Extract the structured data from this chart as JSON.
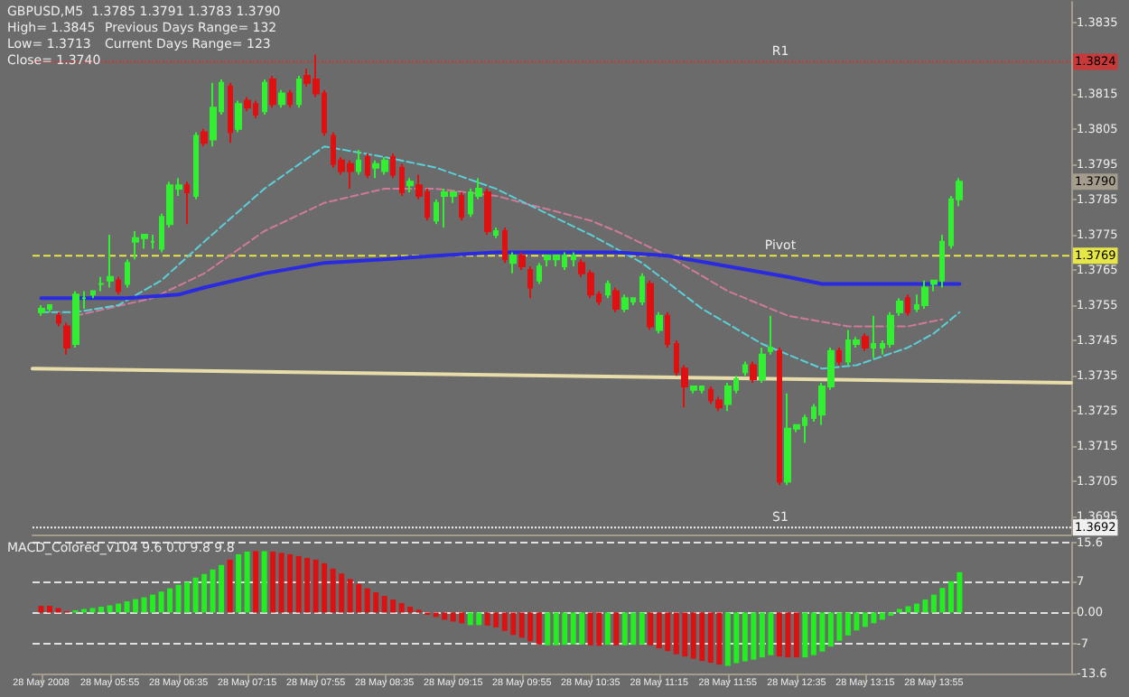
{
  "chart_data": [
    {
      "type": "candlestick",
      "title": "GBPUSD,M5  1.3785 1.3791 1.3783 1.3790",
      "annotations": [
        "High= 1.3845",
        "Previous Days Range= 132",
        "Low= 1.3713",
        "Current Days Range= 123",
        "Close= 1.3740",
        {
          "text": "1.3824",
          "y": 1.3824
        },
        {
          "text": "1.3790",
          "y": 1.379
        },
        {
          "text": "1.3769",
          "y": 1.3769
        },
        {
          "text": "1.3692",
          "y": 1.3692
        }
      ],
      "x": [
        "2008-05-28T05:15",
        "2008-05-28T05:20",
        "2008-05-28T05:25",
        "2008-05-28T05:30",
        "2008-05-28T05:35",
        "2008-05-28T05:40",
        "2008-05-28T05:45",
        "2008-05-28T05:50",
        "2008-05-28T05:55",
        "2008-05-28T06:00",
        "2008-05-28T06:05",
        "2008-05-28T06:10",
        "2008-05-28T06:15",
        "2008-05-28T06:20",
        "2008-05-28T06:25",
        "2008-05-28T06:30",
        "2008-05-28T06:35",
        "2008-05-28T06:40",
        "2008-05-28T06:45",
        "2008-05-28T06:50",
        "2008-05-28T06:55",
        "2008-05-28T07:00",
        "2008-05-28T07:05",
        "2008-05-28T07:10",
        "2008-05-28T07:15",
        "2008-05-28T07:20",
        "2008-05-28T07:25",
        "2008-05-28T07:30",
        "2008-05-28T07:35",
        "2008-05-28T07:40",
        "2008-05-28T07:45",
        "2008-05-28T07:50",
        "2008-05-28T07:55",
        "2008-05-28T08:00",
        "2008-05-28T08:05",
        "2008-05-28T08:10",
        "2008-05-28T08:15",
        "2008-05-28T08:20",
        "2008-05-28T08:25",
        "2008-05-28T08:30",
        "2008-05-28T08:35",
        "2008-05-28T08:40",
        "2008-05-28T08:45",
        "2008-05-28T08:50",
        "2008-05-28T08:55",
        "2008-05-28T09:00",
        "2008-05-28T09:05",
        "2008-05-28T09:10",
        "2008-05-28T09:15",
        "2008-05-28T09:20",
        "2008-05-28T09:25",
        "2008-05-28T09:30",
        "2008-05-28T09:35",
        "2008-05-28T09:40",
        "2008-05-28T09:45",
        "2008-05-28T09:50",
        "2008-05-28T09:55",
        "2008-05-28T10:00",
        "2008-05-28T10:05",
        "2008-05-28T10:10",
        "2008-05-28T10:15",
        "2008-05-28T10:20",
        "2008-05-28T10:25",
        "2008-05-28T10:30",
        "2008-05-28T10:35",
        "2008-05-28T10:40",
        "2008-05-28T10:45",
        "2008-05-28T10:50",
        "2008-05-28T10:55",
        "2008-05-28T11:00",
        "2008-05-28T11:05",
        "2008-05-28T11:10",
        "2008-05-28T11:15",
        "2008-05-28T11:20",
        "2008-05-28T11:25",
        "2008-05-28T11:30",
        "2008-05-28T11:35",
        "2008-05-28T11:40",
        "2008-05-28T11:45",
        "2008-05-28T11:50",
        "2008-05-28T11:55",
        "2008-05-28T12:00",
        "2008-05-28T12:05",
        "2008-05-28T12:10",
        "2008-05-28T12:15",
        "2008-05-28T12:20",
        "2008-05-28T12:25",
        "2008-05-28T12:30",
        "2008-05-28T12:35",
        "2008-05-28T12:40",
        "2008-05-28T12:45",
        "2008-05-28T12:50",
        "2008-05-28T12:55",
        "2008-05-28T13:00",
        "2008-05-28T13:05",
        "2008-05-28T13:10",
        "2008-05-28T13:15",
        "2008-05-28T13:20",
        "2008-05-28T13:25",
        "2008-05-28T13:30",
        "2008-05-28T13:35",
        "2008-05-28T13:40",
        "2008-05-28T13:45",
        "2008-05-28T13:50",
        "2008-05-28T13:55",
        "2008-05-28T14:00",
        "2008-05-28T14:05",
        "2008-05-28T14:10"
      ],
      "xlim": [
        "2008-05-28T05:10",
        "2008-05-28T15:15"
      ],
      "ylim": [
        1.369,
        1.3841
      ],
      "yticks": [
        1.3835,
        1.3815,
        1.3805,
        1.3795,
        1.3785,
        1.3775,
        1.3765,
        1.3755,
        1.3745,
        1.3735,
        1.3725,
        1.3715,
        1.3705,
        1.3695
      ],
      "tick_labels": "y",
      "marker": "none",
      "ohlc": [
        [
          1.3753,
          1.3755,
          1.3752,
          1.3754
        ],
        [
          1.3754,
          1.3755,
          1.3753,
          1.3755
        ],
        [
          1.3752,
          1.3753,
          1.3749,
          1.375
        ],
        [
          1.3749,
          1.375,
          1.3741,
          1.3743
        ],
        [
          1.3744,
          1.3759,
          1.3743,
          1.3758
        ],
        [
          1.3757,
          1.3759,
          1.3754,
          1.3757
        ],
        [
          1.3758,
          1.3759,
          1.3757,
          1.3759
        ],
        [
          1.3761,
          1.3763,
          1.3759,
          1.3761
        ],
        [
          1.3762,
          1.3775,
          1.376,
          1.3763
        ],
        [
          1.3762,
          1.3763,
          1.3758,
          1.3759
        ],
        [
          1.3761,
          1.3768,
          1.376,
          1.3767
        ],
        [
          1.3773,
          1.3776,
          1.3768,
          1.3774
        ],
        [
          1.3774,
          1.3775,
          1.3771,
          1.3775
        ],
        [
          1.3773,
          1.3775,
          1.3771,
          1.3773
        ],
        [
          1.3771,
          1.3781,
          1.377,
          1.378
        ],
        [
          1.3778,
          1.379,
          1.3777,
          1.3789
        ],
        [
          1.3788,
          1.3791,
          1.3786,
          1.3789
        ],
        [
          1.3789,
          1.379,
          1.3778,
          1.3787
        ],
        [
          1.3786,
          1.3804,
          1.3785,
          1.3803
        ],
        [
          1.3804,
          1.3805,
          1.38,
          1.3801
        ],
        [
          1.3802,
          1.3818,
          1.38,
          1.3811
        ],
        [
          1.381,
          1.3819,
          1.3809,
          1.3818
        ],
        [
          1.3817,
          1.3818,
          1.3801,
          1.3804
        ],
        [
          1.3805,
          1.3813,
          1.3804,
          1.3812
        ],
        [
          1.3813,
          1.3814,
          1.381,
          1.3811
        ],
        [
          1.3812,
          1.3813,
          1.3808,
          1.3809
        ],
        [
          1.381,
          1.3819,
          1.3809,
          1.3818
        ],
        [
          1.3819,
          1.382,
          1.3811,
          1.3812
        ],
        [
          1.3812,
          1.3816,
          1.3811,
          1.3815
        ],
        [
          1.3815,
          1.3816,
          1.3811,
          1.3812
        ],
        [
          1.3812,
          1.382,
          1.3811,
          1.3819
        ],
        [
          1.382,
          1.3822,
          1.3817,
          1.3818
        ],
        [
          1.3819,
          1.3826,
          1.3814,
          1.3815
        ],
        [
          1.3815,
          1.3816,
          1.3803,
          1.3804
        ],
        [
          1.3803,
          1.3804,
          1.3794,
          1.3795
        ],
        [
          1.3796,
          1.3797,
          1.3792,
          1.3793
        ],
        [
          1.3795,
          1.3796,
          1.3788,
          1.3793
        ],
        [
          1.3793,
          1.3799,
          1.3792,
          1.3796
        ],
        [
          1.3797,
          1.3798,
          1.3791,
          1.3792
        ],
        [
          1.3794,
          1.3796,
          1.3791,
          1.3795
        ],
        [
          1.3793,
          1.3797,
          1.3792,
          1.3796
        ],
        [
          1.3797,
          1.3798,
          1.3791,
          1.3792
        ],
        [
          1.3794,
          1.3795,
          1.3786,
          1.3787
        ],
        [
          1.3789,
          1.3791,
          1.3787,
          1.379
        ],
        [
          1.3789,
          1.3792,
          1.3785,
          1.3786
        ],
        [
          1.3787,
          1.3788,
          1.3779,
          1.378
        ],
        [
          1.3779,
          1.3785,
          1.3778,
          1.3784
        ],
        [
          1.3786,
          1.3788,
          1.3777,
          1.3787
        ],
        [
          1.3786,
          1.3787,
          1.3784,
          1.3787
        ],
        [
          1.3786,
          1.3787,
          1.3779,
          1.378
        ],
        [
          1.3781,
          1.3788,
          1.378,
          1.3787
        ],
        [
          1.3786,
          1.3791,
          1.3785,
          1.3788
        ],
        [
          1.3787,
          1.3788,
          1.3775,
          1.3776
        ],
        [
          1.3775,
          1.3777,
          1.3774,
          1.3776
        ],
        [
          1.3776,
          1.3777,
          1.3767,
          1.3768
        ],
        [
          1.3767,
          1.377,
          1.3764,
          1.3769
        ],
        [
          1.3769,
          1.377,
          1.3765,
          1.3766
        ],
        [
          1.3765,
          1.3766,
          1.3757,
          1.376
        ],
        [
          1.3762,
          1.3767,
          1.3761,
          1.3766
        ],
        [
          1.3768,
          1.3769,
          1.3766,
          1.3769
        ],
        [
          1.3768,
          1.3769,
          1.3766,
          1.3769
        ],
        [
          1.3766,
          1.377,
          1.3765,
          1.3769
        ],
        [
          1.3768,
          1.377,
          1.3766,
          1.3769
        ],
        [
          1.3767,
          1.3768,
          1.3763,
          1.3764
        ],
        [
          1.3764,
          1.3765,
          1.3757,
          1.3758
        ],
        [
          1.3758,
          1.3759,
          1.3755,
          1.3756
        ],
        [
          1.3758,
          1.3762,
          1.3757,
          1.3761
        ],
        [
          1.3759,
          1.376,
          1.3753,
          1.3754
        ],
        [
          1.3754,
          1.3758,
          1.3753,
          1.3757
        ],
        [
          1.3756,
          1.3757,
          1.3755,
          1.3757
        ],
        [
          1.3756,
          1.3764,
          1.3755,
          1.3763
        ],
        [
          1.3761,
          1.3762,
          1.3748,
          1.3749
        ],
        [
          1.3748,
          1.3753,
          1.3747,
          1.3752
        ],
        [
          1.3752,
          1.3753,
          1.3743,
          1.3744
        ],
        [
          1.3744,
          1.3745,
          1.3735,
          1.3736
        ],
        [
          1.3737,
          1.3738,
          1.3726,
          1.3732
        ],
        [
          1.3731,
          1.3732,
          1.373,
          1.3732
        ],
        [
          1.3731,
          1.3732,
          1.373,
          1.3732
        ],
        [
          1.3731,
          1.3732,
          1.3727,
          1.3728
        ],
        [
          1.3728,
          1.3729,
          1.3725,
          1.3726
        ],
        [
          1.3727,
          1.3733,
          1.3725,
          1.3732
        ],
        [
          1.3731,
          1.3735,
          1.373,
          1.3734
        ],
        [
          1.3736,
          1.3739,
          1.3735,
          1.3738
        ],
        [
          1.3738,
          1.3739,
          1.3733,
          1.3734
        ],
        [
          1.3734,
          1.3743,
          1.3733,
          1.3741
        ],
        [
          1.3742,
          1.3752,
          1.3741,
          1.3743
        ],
        [
          1.3742,
          1.3743,
          1.3704,
          1.3705
        ],
        [
          1.3705,
          1.373,
          1.3704,
          1.372
        ],
        [
          1.372,
          1.3721,
          1.3719,
          1.3721
        ],
        [
          1.3721,
          1.3724,
          1.3716,
          1.3723
        ],
        [
          1.3723,
          1.3727,
          1.3722,
          1.3726
        ],
        [
          1.3724,
          1.3733,
          1.3721,
          1.3732
        ],
        [
          1.3732,
          1.3743,
          1.3731,
          1.3742
        ],
        [
          1.3742,
          1.3743,
          1.3738,
          1.3739
        ],
        [
          1.3739,
          1.3748,
          1.3738,
          1.3745
        ],
        [
          1.3744,
          1.3746,
          1.3743,
          1.3745
        ],
        [
          1.3746,
          1.3747,
          1.3742,
          1.3743
        ],
        [
          1.3743,
          1.3752,
          1.374,
          1.3744
        ],
        [
          1.3743,
          1.3745,
          1.3741,
          1.3744
        ],
        [
          1.3744,
          1.3753,
          1.3743,
          1.3752
        ],
        [
          1.3753,
          1.3757,
          1.3752,
          1.3756
        ],
        [
          1.3757,
          1.3758,
          1.3752,
          1.3753
        ],
        [
          1.3754,
          1.3758,
          1.3753,
          1.3755
        ],
        [
          1.3755,
          1.3762,
          1.3754,
          1.376
        ],
        [
          1.3761,
          1.3762,
          1.3759,
          1.3762
        ],
        [
          1.3762,
          1.3775,
          1.376,
          1.3773
        ],
        [
          1.3772,
          1.3786,
          1.3771,
          1.3785
        ],
        [
          1.3785,
          1.3791,
          1.3783,
          1.379
        ]
      ],
      "colors": [
        "#33ee33",
        "#33ee33",
        "#dd1111",
        "#dd1111",
        "#33ee33",
        "#33ee33",
        "#33ee33",
        "#33ee33",
        "#33ee33",
        "#dd1111",
        "#33ee33",
        "#33ee33",
        "#33ee33",
        "#33ee33",
        "#33ee33",
        "#33ee33",
        "#33ee33",
        "#dd1111",
        "#33ee33",
        "#dd1111",
        "#33ee33",
        "#33ee33",
        "#dd1111",
        "#33ee33",
        "#dd1111",
        "#dd1111",
        "#33ee33",
        "#dd1111",
        "#33ee33",
        "#dd1111",
        "#33ee33",
        "#dd1111",
        "#dd1111",
        "#dd1111",
        "#dd1111",
        "#dd1111",
        "#dd1111",
        "#33ee33",
        "#dd1111",
        "#33ee33",
        "#33ee33",
        "#dd1111",
        "#dd1111",
        "#33ee33",
        "#dd1111",
        "#dd1111",
        "#33ee33",
        "#33ee33",
        "#33ee33",
        "#dd1111",
        "#33ee33",
        "#33ee33",
        "#dd1111",
        "#33ee33",
        "#dd1111",
        "#33ee33",
        "#dd1111",
        "#dd1111",
        "#33ee33",
        "#33ee33",
        "#33ee33",
        "#33ee33",
        "#33ee33",
        "#dd1111",
        "#dd1111",
        "#dd1111",
        "#33ee33",
        "#dd1111",
        "#33ee33",
        "#33ee33",
        "#33ee33",
        "#dd1111",
        "#33ee33",
        "#dd1111",
        "#dd1111",
        "#dd1111",
        "#33ee33",
        "#33ee33",
        "#dd1111",
        "#dd1111",
        "#33ee33",
        "#33ee33",
        "#33ee33",
        "#dd1111",
        "#33ee33",
        "#33ee33",
        "#dd1111",
        "#33ee33",
        "#33ee33",
        "#33ee33",
        "#33ee33",
        "#33ee33",
        "#33ee33",
        "#dd1111",
        "#33ee33",
        "#33ee33",
        "#dd1111",
        "#33ee33",
        "#33ee33",
        "#33ee33",
        "#33ee33",
        "#dd1111",
        "#33ee33",
        "#33ee33",
        "#33ee33",
        "#33ee33",
        "#33ee33",
        "#33ee33"
      ],
      "series": [
        {
          "type": "line",
          "color": "#e8dcaa",
          "line_style": "solid",
          "x": [
            "2008-05-28T05:10",
            "2008-05-28T15:15"
          ],
          "values": [
            1.3737,
            1.3733
          ]
        },
        {
          "type": "line",
          "color": "#d07a9a",
          "line_style": "dashed",
          "x": [
            "2008-05-28T05:35",
            "2008-05-28T06:20",
            "2008-05-28T06:50",
            "2008-05-28T07:25",
            "2008-05-28T08:00",
            "2008-05-28T08:35",
            "2008-05-28T09:05",
            "2008-05-28T09:40",
            "2008-05-28T10:35",
            "2008-05-28T10:50",
            "2008-05-28T11:20",
            "2008-05-28T11:55",
            "2008-05-28T12:30",
            "2008-05-28T13:05",
            "2008-05-28T13:40",
            "2008-05-28T14:00"
          ],
          "values": [
            1.3752,
            1.3757,
            1.3764,
            1.3776,
            1.3784,
            1.3788,
            1.3788,
            1.3786,
            1.3779,
            1.3776,
            1.3769,
            1.3759,
            1.3752,
            1.3749,
            1.3749,
            1.3751
          ]
        },
        {
          "type": "line",
          "color": "#5ad0d8",
          "line_style": "dashed",
          "x": [
            "2008-05-28T05:15",
            "2008-05-28T05:35",
            "2008-05-28T06:00",
            "2008-05-28T06:25",
            "2008-05-28T06:50",
            "2008-05-28T07:25",
            "2008-05-28T08:00",
            "2008-05-28T08:35",
            "2008-05-28T09:05",
            "2008-05-28T09:40",
            "2008-05-28T10:35",
            "2008-05-28T11:05",
            "2008-05-28T11:40",
            "2008-05-28T12:15",
            "2008-05-28T12:30",
            "2008-05-28T12:50",
            "2008-05-28T13:10",
            "2008-05-28T13:40",
            "2008-05-28T13:55",
            "2008-05-28T14:10"
          ],
          "values": [
            1.3753,
            1.3753,
            1.3755,
            1.3762,
            1.3773,
            1.3788,
            1.38,
            1.3797,
            1.3794,
            1.3788,
            1.3775,
            1.3767,
            1.3754,
            1.3744,
            1.3741,
            1.3737,
            1.3738,
            1.3743,
            1.3747,
            1.3753
          ]
        },
        {
          "type": "line",
          "color": "#2a2ae0",
          "line_style": "solid",
          "x": [
            "2008-05-28T05:15",
            "2008-05-28T06:05",
            "2008-05-28T06:35",
            "2008-05-28T06:50",
            "2008-05-28T07:25",
            "2008-05-28T08:00",
            "2008-05-28T08:35",
            "2008-05-28T09:05",
            "2008-05-28T09:40",
            "2008-05-28T10:35",
            "2008-05-28T10:50",
            "2008-05-28T11:20",
            "2008-05-28T11:55",
            "2008-05-28T12:30",
            "2008-05-28T12:50",
            "2008-05-28T13:20",
            "2008-05-28T14:10"
          ],
          "values": [
            1.3757,
            1.3757,
            1.3758,
            1.376,
            1.3764,
            1.3767,
            1.3768,
            1.3769,
            1.377,
            1.377,
            1.377,
            1.3769,
            1.3766,
            1.3763,
            1.3761,
            1.3761,
            1.3761
          ]
        }
      ],
      "ref_lines": [
        {
          "axis": "y",
          "value": 1.3824,
          "label": "R1",
          "color": "#c83a3a",
          "line_style": "dotted"
        },
        {
          "axis": "y",
          "value": 1.3769,
          "label": "Pivot",
          "color": "#e6e64a",
          "line_style": "dashed"
        },
        {
          "axis": "y",
          "value": 1.3692,
          "label": "S1",
          "color": "#f0f0f0",
          "line_style": "dotted"
        }
      ]
    },
    {
      "type": "bar",
      "title": "MACD_Colored_v104 9.6 0.0 9.8 9.8",
      "x": [
        "2008-05-28T05:15",
        "2008-05-28T05:20",
        "2008-05-28T05:25",
        "2008-05-28T05:30",
        "2008-05-28T05:35",
        "2008-05-28T05:40",
        "2008-05-28T05:45",
        "2008-05-28T05:50",
        "2008-05-28T05:55",
        "2008-05-28T06:00",
        "2008-05-28T06:05",
        "2008-05-28T06:10",
        "2008-05-28T06:15",
        "2008-05-28T06:20",
        "2008-05-28T06:25",
        "2008-05-28T06:30",
        "2008-05-28T06:35",
        "2008-05-28T06:40",
        "2008-05-28T06:45",
        "2008-05-28T06:50",
        "2008-05-28T06:55",
        "2008-05-28T07:00",
        "2008-05-28T07:05",
        "2008-05-28T07:10",
        "2008-05-28T07:15",
        "2008-05-28T07:20",
        "2008-05-28T07:25",
        "2008-05-28T07:30",
        "2008-05-28T07:35",
        "2008-05-28T07:40",
        "2008-05-28T07:45",
        "2008-05-28T07:50",
        "2008-05-28T07:55",
        "2008-05-28T08:00",
        "2008-05-28T08:05",
        "2008-05-28T08:10",
        "2008-05-28T08:15",
        "2008-05-28T08:20",
        "2008-05-28T08:25",
        "2008-05-28T08:30",
        "2008-05-28T08:35",
        "2008-05-28T08:40",
        "2008-05-28T08:45",
        "2008-05-28T08:50",
        "2008-05-28T08:55",
        "2008-05-28T09:00",
        "2008-05-28T09:05",
        "2008-05-28T09:10",
        "2008-05-28T09:15",
        "2008-05-28T09:20",
        "2008-05-28T09:25",
        "2008-05-28T09:30",
        "2008-05-28T09:35",
        "2008-05-28T09:40",
        "2008-05-28T09:45",
        "2008-05-28T09:50",
        "2008-05-28T09:55",
        "2008-05-28T10:00",
        "2008-05-28T10:05",
        "2008-05-28T10:10",
        "2008-05-28T10:15",
        "2008-05-28T10:20",
        "2008-05-28T10:25",
        "2008-05-28T10:30",
        "2008-05-28T10:35",
        "2008-05-28T10:40",
        "2008-05-28T10:45",
        "2008-05-28T10:50",
        "2008-05-28T10:55",
        "2008-05-28T11:00",
        "2008-05-28T11:05",
        "2008-05-28T11:10",
        "2008-05-28T11:15",
        "2008-05-28T11:20",
        "2008-05-28T11:25",
        "2008-05-28T11:30",
        "2008-05-28T11:35",
        "2008-05-28T11:40",
        "2008-05-28T11:45",
        "2008-05-28T11:50",
        "2008-05-28T11:55",
        "2008-05-28T12:00",
        "2008-05-28T12:05",
        "2008-05-28T12:10",
        "2008-05-28T12:15",
        "2008-05-28T12:20",
        "2008-05-28T12:25",
        "2008-05-28T12:30",
        "2008-05-28T12:35",
        "2008-05-28T12:40",
        "2008-05-28T12:45",
        "2008-05-28T12:50",
        "2008-05-28T12:55",
        "2008-05-28T13:00",
        "2008-05-28T13:05",
        "2008-05-28T13:10",
        "2008-05-28T13:15",
        "2008-05-28T13:20",
        "2008-05-28T13:25",
        "2008-05-28T13:30",
        "2008-05-28T13:35",
        "2008-05-28T13:40",
        "2008-05-28T13:45",
        "2008-05-28T13:50",
        "2008-05-28T13:55",
        "2008-05-28T14:00",
        "2008-05-28T14:05",
        "2008-05-28T14:10"
      ],
      "xlim": [
        "2008-05-28T05:10",
        "2008-05-28T15:15"
      ],
      "xticks": [
        {
          "value": "2008-05-28T05:15",
          "label": "28 May 2008"
        },
        {
          "value": "2008-05-28T05:55",
          "label": "28 May 05:55"
        },
        {
          "value": "2008-05-28T06:35",
          "label": "28 May 06:35"
        },
        {
          "value": "2008-05-28T07:15",
          "label": "28 May 07:15"
        },
        {
          "value": "2008-05-28T07:55",
          "label": "28 May 07:55"
        },
        {
          "value": "2008-05-28T08:35",
          "label": "28 May 08:35"
        },
        {
          "value": "2008-05-28T09:15",
          "label": "28 May 09:15"
        },
        {
          "value": "2008-05-28T09:55",
          "label": "28 May 09:55"
        },
        {
          "value": "2008-05-28T10:35",
          "label": "28 May 10:35"
        },
        {
          "value": "2008-05-28T11:15",
          "label": "28 May 11:15"
        },
        {
          "value": "2008-05-28T11:55",
          "label": "28 May 11:55"
        },
        {
          "value": "2008-05-28T12:35",
          "label": "28 May 12:35"
        },
        {
          "value": "2008-05-28T13:15",
          "label": "28 May 13:15"
        },
        {
          "value": "2008-05-28T13:55",
          "label": "28 May 13:55"
        }
      ],
      "ylim": [
        -13.6,
        15.6
      ],
      "yticks": [
        15.6,
        7,
        {
          "value": 0,
          "label": "0.00"
        },
        -7,
        -13.6
      ],
      "grid": "y",
      "values": [
        1.5,
        1.5,
        1.0,
        0.3,
        0.5,
        0.8,
        1.0,
        1.3,
        1.6,
        2.0,
        2.5,
        3.0,
        3.4,
        4.0,
        4.7,
        5.4,
        6.2,
        6.8,
        7.8,
        8.6,
        9.6,
        10.6,
        11.8,
        13.0,
        13.6,
        13.7,
        13.7,
        13.6,
        13.3,
        13.0,
        12.6,
        12.2,
        11.8,
        11.0,
        9.8,
        8.7,
        7.5,
        6.4,
        5.4,
        4.5,
        3.7,
        2.9,
        2.1,
        1.3,
        0.6,
        -0.5,
        -1.0,
        -1.6,
        -2.0,
        -2.4,
        -2.8,
        -2.8,
        -2.9,
        -3.3,
        -4.1,
        -5.0,
        -5.6,
        -6.4,
        -7.1,
        -7.3,
        -7.3,
        -7.2,
        -7.1,
        -7.1,
        -7.3,
        -7.4,
        -7.2,
        -7.3,
        -7.3,
        -7.2,
        -7.1,
        -7.3,
        -8.0,
        -8.6,
        -9.3,
        -9.8,
        -10.3,
        -10.8,
        -11.2,
        -11.6,
        -11.9,
        -11.3,
        -10.9,
        -10.5,
        -10.0,
        -9.5,
        -9.8,
        -10.0,
        -10.0,
        -10.0,
        -9.5,
        -8.7,
        -7.6,
        -6.3,
        -5.1,
        -4.0,
        -3.2,
        -2.4,
        -1.6,
        -0.7,
        0.8,
        1.4,
        2.0,
        2.9,
        4.0,
        5.5,
        7.0,
        9.0
      ],
      "colors": [
        "#dd1111",
        "#dd1111",
        "#dd1111",
        "#dd1111",
        "#22ee22",
        "#22ee22",
        "#22ee22",
        "#22ee22",
        "#22ee22",
        "#22ee22",
        "#22ee22",
        "#22ee22",
        "#22ee22",
        "#22ee22",
        "#22ee22",
        "#22ee22",
        "#22ee22",
        "#22ee22",
        "#22ee22",
        "#22ee22",
        "#22ee22",
        "#22ee22",
        "#dd1111",
        "#22ee22",
        "#22ee22",
        "#dd1111",
        "#22ee22",
        "#dd1111",
        "#dd1111",
        "#dd1111",
        "#dd1111",
        "#dd1111",
        "#dd1111",
        "#dd1111",
        "#dd1111",
        "#dd1111",
        "#dd1111",
        "#dd1111",
        "#dd1111",
        "#dd1111",
        "#dd1111",
        "#dd1111",
        "#dd1111",
        "#dd1111",
        "#dd1111",
        "#dd1111",
        "#dd1111",
        "#dd1111",
        "#dd1111",
        "#dd1111",
        "#22ee22",
        "#22ee22",
        "#dd1111",
        "#dd1111",
        "#dd1111",
        "#dd1111",
        "#dd1111",
        "#dd1111",
        "#dd1111",
        "#22ee22",
        "#22ee22",
        "#22ee22",
        "#22ee22",
        "#22ee22",
        "#dd1111",
        "#dd1111",
        "#22ee22",
        "#dd1111",
        "#22ee22",
        "#22ee22",
        "#22ee22",
        "#dd1111",
        "#dd1111",
        "#dd1111",
        "#dd1111",
        "#dd1111",
        "#dd1111",
        "#dd1111",
        "#dd1111",
        "#dd1111",
        "#22ee22",
        "#22ee22",
        "#22ee22",
        "#22ee22",
        "#22ee22",
        "#22ee22",
        "#dd1111",
        "#dd1111",
        "#dd1111",
        "#22ee22",
        "#22ee22",
        "#22ee22",
        "#22ee22",
        "#22ee22",
        "#22ee22",
        "#22ee22",
        "#22ee22",
        "#22ee22",
        "#22ee22",
        "#22ee22",
        "#22ee22",
        "#22ee22",
        "#22ee22",
        "#22ee22",
        "#22ee22",
        "#22ee22",
        "#22ee22",
        "#22ee22"
      ]
    }
  ]
}
